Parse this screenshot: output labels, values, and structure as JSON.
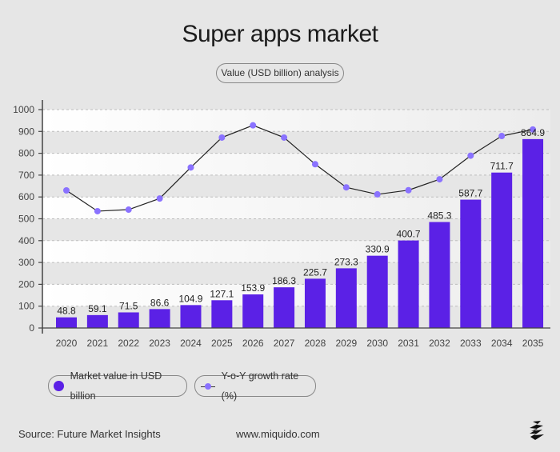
{
  "header": {
    "title": "Super apps market",
    "subtitle": "Value (USD billion) analysis"
  },
  "chart_data": {
    "type": "bar",
    "title": "Super apps market",
    "subtitle": "Value (USD billion) analysis",
    "categories": [
      "2020",
      "2021",
      "2022",
      "2023",
      "2024",
      "2025",
      "2026",
      "2027",
      "2028",
      "2029",
      "2030",
      "2031",
      "2032",
      "2033",
      "2034",
      "2035"
    ],
    "yticks": [
      "0",
      "100",
      "200",
      "300",
      "400",
      "500",
      "600",
      "700",
      "800",
      "900",
      "1000"
    ],
    "ylim": [
      0,
      1000
    ],
    "grid": true,
    "legend_placement": "bottom-left",
    "series": [
      {
        "name": "Market value in USD billion",
        "type": "bar",
        "color": "#5b21e6",
        "values": [
          48.8,
          59.1,
          71.5,
          86.6,
          104.9,
          127.1,
          153.9,
          186.3,
          225.7,
          273.3,
          330.9,
          400.7,
          485.3,
          587.7,
          711.7,
          864.9
        ],
        "labels": [
          "48.8",
          "59.1",
          "71.5",
          "86.6",
          "104.9",
          "127.1",
          "153.9",
          "186.3",
          "225.7",
          "273.3",
          "330.9",
          "400.7",
          "485.3",
          "587.7",
          "711.7",
          "864.9"
        ]
      },
      {
        "name": "Y-o-Y growth rate (%)",
        "type": "line",
        "color": "#8a72ff",
        "values": [
          630,
          535,
          542,
          593,
          735,
          872,
          928,
          872,
          750,
          644,
          612,
          631,
          681,
          789,
          879,
          909
        ]
      }
    ]
  },
  "legend": {
    "bar_label": "Market value in USD billion",
    "line_label": "Y-o-Y growth rate (%)"
  },
  "footer": {
    "source": "Source: Future Market Insights",
    "website": "www.miquido.com",
    "logo_icon": "miquido-logo"
  }
}
